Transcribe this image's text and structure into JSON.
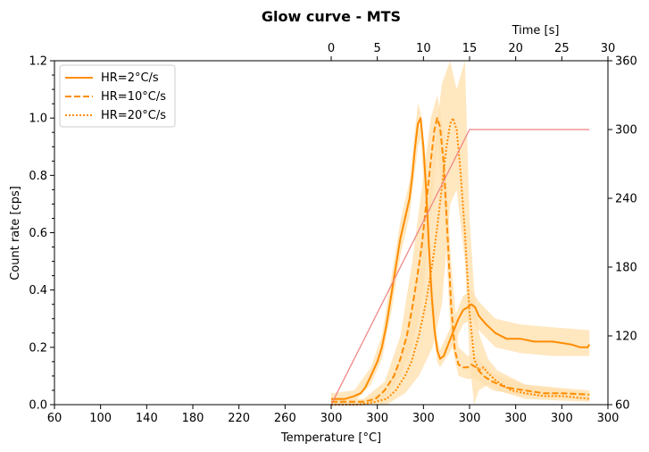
{
  "chart_data": {
    "type": "line",
    "title": "Glow curve - MTS",
    "xlabel": "Temperature [°C]",
    "ylabel": "Count rate [cps]",
    "top_xlabel": "Time [s]",
    "xlim": [
      60,
      300
    ],
    "ylim": [
      0,
      1.2
    ],
    "y2lim": [
      60,
      360
    ],
    "top_xlim": [
      -30,
      30
    ],
    "grid": false,
    "legend_position": "top-left",
    "x_tick_labels": [
      "60",
      "100",
      "140",
      "180",
      "220",
      "260",
      "300",
      "300",
      "300",
      "300",
      "300",
      "300",
      "300"
    ],
    "y_tick_labels": [
      "0.0",
      "0.2",
      "0.4",
      "0.6",
      "0.8",
      "1.0",
      "1.2"
    ],
    "y2_tick_labels": [
      "60",
      "120",
      "180",
      "240",
      "300",
      "360"
    ],
    "top_tick_labels": [
      "0",
      "5",
      "10",
      "15",
      "20",
      "25",
      "30"
    ],
    "colors": {
      "series": "#ff8c00",
      "band": "#ffe1b0",
      "ramp": "#f08080"
    },
    "series": [
      {
        "name": "HR=2°C/s",
        "style": "solid",
        "points": [
          [
            0,
            0.02
          ],
          [
            0.5,
            0.02
          ],
          [
            1.5,
            0.02
          ],
          [
            2.5,
            0.03
          ],
          [
            3.2,
            0.04
          ],
          [
            3.7,
            0.06
          ],
          [
            4.3,
            0.1
          ],
          [
            5.0,
            0.15
          ],
          [
            5.5,
            0.2
          ],
          [
            6.0,
            0.28
          ],
          [
            6.5,
            0.38
          ],
          [
            7.0,
            0.48
          ],
          [
            7.5,
            0.58
          ],
          [
            8.0,
            0.65
          ],
          [
            8.5,
            0.72
          ],
          [
            8.8,
            0.8
          ],
          [
            9.1,
            0.9
          ],
          [
            9.4,
            0.98
          ],
          [
            9.7,
            1.0
          ],
          [
            10.0,
            0.9
          ],
          [
            10.3,
            0.75
          ],
          [
            10.6,
            0.55
          ],
          [
            10.9,
            0.38
          ],
          [
            11.2,
            0.26
          ],
          [
            11.5,
            0.19
          ],
          [
            11.8,
            0.16
          ],
          [
            12.2,
            0.17
          ],
          [
            12.8,
            0.22
          ],
          [
            13.3,
            0.26
          ],
          [
            13.8,
            0.3
          ],
          [
            14.3,
            0.33
          ],
          [
            14.8,
            0.34
          ],
          [
            15.2,
            0.35
          ],
          [
            15.6,
            0.34
          ],
          [
            16.0,
            0.31
          ],
          [
            16.8,
            0.28
          ],
          [
            17.8,
            0.25
          ],
          [
            19.0,
            0.23
          ],
          [
            20.5,
            0.23
          ],
          [
            22.0,
            0.22
          ],
          [
            24.0,
            0.22
          ],
          [
            26.0,
            0.21
          ],
          [
            27.0,
            0.2
          ],
          [
            27.8,
            0.2
          ],
          [
            28.0,
            0.21
          ]
        ],
        "band": [
          [
            0,
            0.0,
            0.04
          ],
          [
            2.5,
            0.01,
            0.05
          ],
          [
            4.3,
            0.07,
            0.13
          ],
          [
            5.5,
            0.16,
            0.24
          ],
          [
            6.5,
            0.32,
            0.44
          ],
          [
            7.5,
            0.52,
            0.64
          ],
          [
            8.5,
            0.66,
            0.78
          ],
          [
            9.4,
            0.9,
            1.05
          ],
          [
            9.7,
            0.93,
            1.02
          ],
          [
            10.3,
            0.66,
            0.84
          ],
          [
            10.9,
            0.3,
            0.46
          ],
          [
            11.5,
            0.15,
            0.23
          ],
          [
            11.8,
            0.13,
            0.19
          ],
          [
            12.8,
            0.18,
            0.26
          ],
          [
            14.3,
            0.28,
            0.38
          ],
          [
            15.2,
            0.3,
            0.4
          ],
          [
            16.0,
            0.26,
            0.36
          ],
          [
            17.8,
            0.2,
            0.3
          ],
          [
            20.5,
            0.18,
            0.28
          ],
          [
            24.0,
            0.17,
            0.27
          ],
          [
            28.0,
            0.17,
            0.26
          ]
        ]
      },
      {
        "name": "HR=10°C/s",
        "style": "dashed",
        "points": [
          [
            0,
            0.01
          ],
          [
            2.0,
            0.01
          ],
          [
            3.5,
            0.01
          ],
          [
            4.8,
            0.02
          ],
          [
            5.8,
            0.05
          ],
          [
            6.8,
            0.1
          ],
          [
            7.5,
            0.16
          ],
          [
            8.2,
            0.24
          ],
          [
            8.8,
            0.34
          ],
          [
            9.3,
            0.44
          ],
          [
            9.8,
            0.55
          ],
          [
            10.3,
            0.7
          ],
          [
            10.8,
            0.85
          ],
          [
            11.2,
            0.96
          ],
          [
            11.5,
            1.0
          ],
          [
            11.8,
            0.97
          ],
          [
            12.2,
            0.84
          ],
          [
            12.6,
            0.6
          ],
          [
            13.0,
            0.35
          ],
          [
            13.4,
            0.19
          ],
          [
            13.8,
            0.14
          ],
          [
            14.3,
            0.13
          ],
          [
            14.8,
            0.13
          ],
          [
            15.2,
            0.14
          ],
          [
            15.7,
            0.13
          ],
          [
            16.5,
            0.1
          ],
          [
            17.5,
            0.08
          ],
          [
            19.0,
            0.06
          ],
          [
            21.0,
            0.05
          ],
          [
            23.0,
            0.04
          ],
          [
            25.0,
            0.04
          ],
          [
            28.0,
            0.035
          ]
        ],
        "band": [
          [
            0,
            0.0,
            0.02
          ],
          [
            3.5,
            0.0,
            0.02
          ],
          [
            5.8,
            0.02,
            0.08
          ],
          [
            7.5,
            0.1,
            0.24
          ],
          [
            8.8,
            0.2,
            0.5
          ],
          [
            9.8,
            0.35,
            0.75
          ],
          [
            10.8,
            0.65,
            1.0
          ],
          [
            11.5,
            0.9,
            1.08
          ],
          [
            12.2,
            0.7,
            0.95
          ],
          [
            13.0,
            0.22,
            0.5
          ],
          [
            13.8,
            0.1,
            0.2
          ],
          [
            14.8,
            0.09,
            0.17
          ],
          [
            15.7,
            0.09,
            0.17
          ],
          [
            17.5,
            0.05,
            0.11
          ],
          [
            21.0,
            0.03,
            0.07
          ],
          [
            28.0,
            0.02,
            0.05
          ]
        ]
      },
      {
        "name": "HR=20°C/s",
        "style": "dotted",
        "points": [
          [
            0,
            0.0
          ],
          [
            3.0,
            0.0
          ],
          [
            4.8,
            0.01
          ],
          [
            6.0,
            0.02
          ],
          [
            7.0,
            0.05
          ],
          [
            8.0,
            0.1
          ],
          [
            8.7,
            0.15
          ],
          [
            9.5,
            0.24
          ],
          [
            10.3,
            0.36
          ],
          [
            11.0,
            0.5
          ],
          [
            11.5,
            0.62
          ],
          [
            12.0,
            0.76
          ],
          [
            12.5,
            0.9
          ],
          [
            12.9,
            0.98
          ],
          [
            13.2,
            1.0
          ],
          [
            13.6,
            0.96
          ],
          [
            14.0,
            0.82
          ],
          [
            14.5,
            0.6
          ],
          [
            15.0,
            0.32
          ],
          [
            15.5,
            0.16
          ],
          [
            16.0,
            0.12
          ],
          [
            16.5,
            0.13
          ],
          [
            17.0,
            0.11
          ],
          [
            18.0,
            0.08
          ],
          [
            19.5,
            0.05
          ],
          [
            21.0,
            0.04
          ],
          [
            23.0,
            0.03
          ],
          [
            25.0,
            0.03
          ],
          [
            28.0,
            0.02
          ]
        ],
        "band": [
          [
            0,
            0.0,
            0.01
          ],
          [
            3.0,
            0.0,
            0.01
          ],
          [
            6.0,
            0.0,
            0.05
          ],
          [
            8.0,
            0.04,
            0.2
          ],
          [
            9.5,
            0.1,
            0.45
          ],
          [
            11.0,
            0.2,
            0.85
          ],
          [
            12.0,
            0.35,
            1.12
          ],
          [
            12.9,
            0.7,
            1.25
          ],
          [
            13.6,
            0.75,
            1.1
          ],
          [
            14.5,
            0.5,
            1.2
          ],
          [
            15.0,
            0.15,
            0.65
          ],
          [
            15.5,
            0.0,
            0.4
          ],
          [
            16.0,
            0.05,
            0.25
          ],
          [
            17.0,
            0.07,
            0.16
          ],
          [
            18.0,
            0.05,
            0.12
          ],
          [
            21.0,
            0.02,
            0.07
          ],
          [
            28.0,
            0.01,
            0.04
          ]
        ]
      },
      {
        "name": "",
        "style": "ramp",
        "axis": "right",
        "points": [
          [
            0,
            60
          ],
          [
            15,
            300
          ],
          [
            28,
            300
          ]
        ]
      }
    ]
  }
}
